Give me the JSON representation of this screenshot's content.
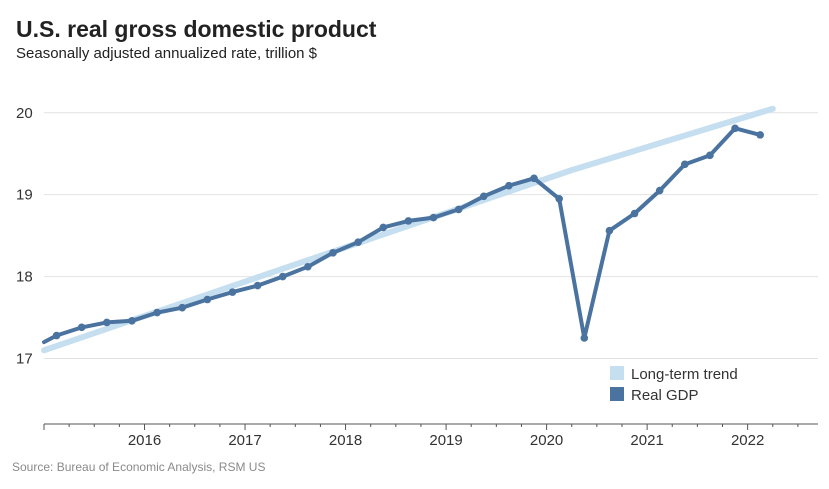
{
  "title": "U.S. real gross domestic product",
  "subtitle": "Seasonally adjusted annualized rate, trillion $",
  "source": "Source: Bureau of Economic Analysis, RSM US",
  "colors": {
    "trend": "#c5dff0",
    "gdp": "#4a73a0",
    "grid": "#e2e2e2",
    "axis": "#555555"
  },
  "chart_data": {
    "type": "line",
    "title": "U.S. real gross domestic product",
    "subtitle": "Seasonally adjusted annualized rate, trillion $",
    "xlabel": "",
    "ylabel": "",
    "xlim": [
      2015.0,
      2022.7
    ],
    "ylim": [
      16.2,
      20.4
    ],
    "yticks": [
      17,
      18,
      19,
      20
    ],
    "xticks": [
      2016,
      2017,
      2018,
      2019,
      2020,
      2021,
      2022
    ],
    "grid": true,
    "legend": "bottom-right",
    "series": [
      {
        "name": "Long-term trend",
        "color": "#c5dff0",
        "x": [
          2015.0,
          2020.25,
          2022.25
        ],
        "y": [
          17.1,
          19.3,
          20.05
        ]
      },
      {
        "name": "Real GDP",
        "color": "#4a73a0",
        "x": [
          2015.0,
          2015.125,
          2015.375,
          2015.625,
          2015.875,
          2016.125,
          2016.375,
          2016.625,
          2016.875,
          2017.125,
          2017.375,
          2017.625,
          2017.875,
          2018.125,
          2018.375,
          2018.625,
          2018.875,
          2019.125,
          2019.375,
          2019.625,
          2019.875,
          2020.125,
          2020.375,
          2020.625,
          2020.875,
          2021.125,
          2021.375,
          2021.625,
          2021.875,
          2022.125
        ],
        "y": [
          17.2,
          17.28,
          17.38,
          17.44,
          17.46,
          17.56,
          17.62,
          17.72,
          17.81,
          17.89,
          18.0,
          18.12,
          18.29,
          18.42,
          18.6,
          18.68,
          18.72,
          18.82,
          18.98,
          19.11,
          19.2,
          18.95,
          17.25,
          18.56,
          18.77,
          19.05,
          19.37,
          19.48,
          19.81,
          19.73
        ]
      }
    ]
  }
}
